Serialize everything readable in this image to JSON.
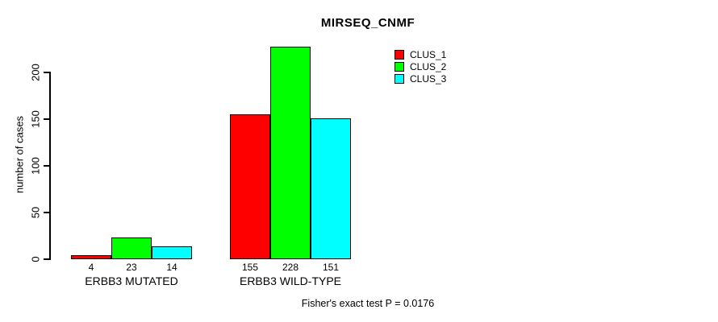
{
  "chart_data": {
    "type": "bar",
    "title": "MIRSEQ_CNMF",
    "xlabel": "",
    "ylabel": "number of cases",
    "ylim": [
      0,
      200
    ],
    "yticks": [
      0,
      50,
      100,
      150,
      200
    ],
    "grid": false,
    "legend_position": "top-right",
    "categories": [
      "ERBB3 MUTATED",
      "ERBB3 WILD-TYPE"
    ],
    "series": [
      {
        "name": "CLUS_1",
        "color": "#ff0000",
        "values": [
          4,
          155
        ]
      },
      {
        "name": "CLUS_2",
        "color": "#00ff00",
        "values": [
          23,
          228
        ]
      },
      {
        "name": "CLUS_3",
        "color": "#00ffff",
        "values": [
          14,
          151
        ]
      }
    ],
    "bar_value_labels": [
      [
        4,
        23,
        14
      ],
      [
        155,
        228,
        151
      ]
    ],
    "footnote": "Fisher's exact test P = 0.0176"
  },
  "colors": {
    "background": "#ffffff",
    "text": "#000000",
    "axis": "#000000",
    "bar_border": "#000000",
    "clus_1": "#ff0000",
    "clus_2": "#00ff00",
    "clus_3": "#00ffff"
  }
}
